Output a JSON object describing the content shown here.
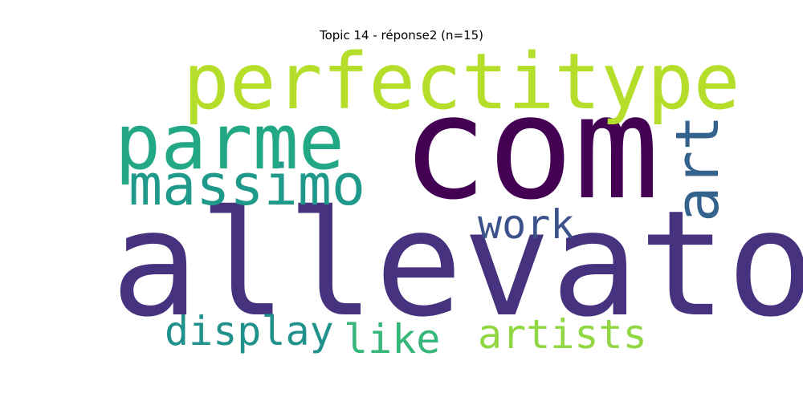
{
  "title": "Topic 14 - réponse2 (n=15)",
  "words": [
    {
      "key": "allevato",
      "text": "allevato",
      "color": "#46327e"
    },
    {
      "key": "com",
      "text": "com",
      "color": "#440154"
    },
    {
      "key": "perfectitype",
      "text": "perfectitype",
      "color": "#b5de2b"
    },
    {
      "key": "parme",
      "text": "parme",
      "color": "#22a884"
    },
    {
      "key": "massimo",
      "text": "massimo",
      "color": "#1f9a8a"
    },
    {
      "key": "art",
      "text": "art",
      "color": "#33638d"
    },
    {
      "key": "work",
      "text": "work",
      "color": "#3b528b"
    },
    {
      "key": "display",
      "text": "display",
      "color": "#21918c"
    },
    {
      "key": "like",
      "text": "like",
      "color": "#35b779"
    },
    {
      "key": "artists",
      "text": "artists",
      "color": "#90d743"
    }
  ]
}
